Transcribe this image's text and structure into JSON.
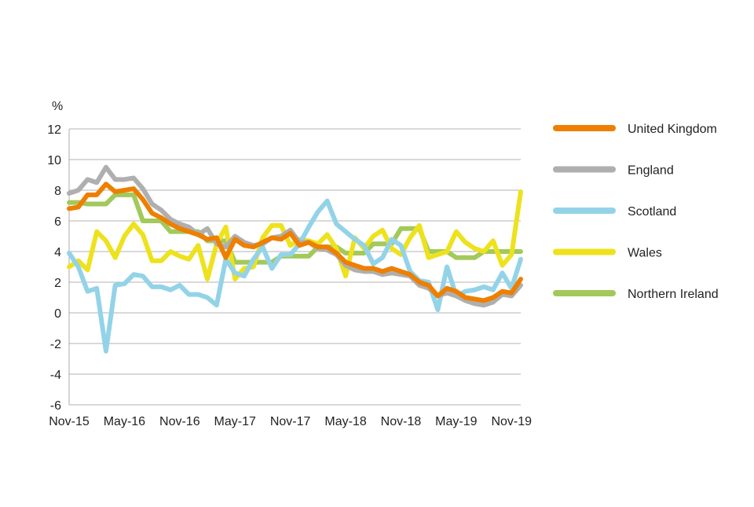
{
  "chart_data": {
    "type": "line",
    "ylabel": "%",
    "ylim": [
      -6,
      12
    ],
    "yticks": [
      "12",
      "10",
      "8",
      "6",
      "4",
      "2",
      "0",
      "-2",
      "-4",
      "-6"
    ],
    "ytick_values": [
      12,
      10,
      8,
      6,
      4,
      2,
      0,
      -2,
      -4,
      -6
    ],
    "xticks": [
      "Nov-15",
      "May-16",
      "Nov-16",
      "May-17",
      "Nov-17",
      "May-18",
      "Nov-18",
      "May-19",
      "Nov-19"
    ],
    "xtick_index": [
      0,
      6,
      12,
      18,
      24,
      30,
      36,
      42,
      48
    ],
    "grid": "horizontal",
    "legend_position": "right",
    "series": [
      {
        "name": "United Kingdom",
        "color": "#EE7F00",
        "values": [
          6.8,
          6.9,
          7.7,
          7.7,
          8.4,
          7.9,
          8.0,
          8.1,
          7.4,
          6.5,
          6.2,
          5.8,
          5.5,
          5.3,
          5.1,
          4.8,
          4.9,
          3.6,
          4.8,
          4.4,
          4.3,
          4.6,
          4.9,
          4.8,
          5.2,
          4.4,
          4.6,
          4.3,
          4.3,
          3.9,
          3.3,
          3.1,
          2.9,
          2.9,
          2.7,
          2.9,
          2.7,
          2.5,
          2.0,
          1.8,
          1.1,
          1.6,
          1.4,
          1.0,
          0.9,
          0.8,
          1.0,
          1.4,
          1.3,
          2.2
        ]
      },
      {
        "name": "England",
        "color": "#AFAFAF",
        "values": [
          7.8,
          8.0,
          8.7,
          8.5,
          9.5,
          8.7,
          8.7,
          8.8,
          8.1,
          7.1,
          6.7,
          6.1,
          5.8,
          5.6,
          5.1,
          5.5,
          4.5,
          4.3,
          5.0,
          4.6,
          4.4,
          4.5,
          4.9,
          5.0,
          5.4,
          4.6,
          4.6,
          4.2,
          4.1,
          3.8,
          3.1,
          2.8,
          2.7,
          2.7,
          2.5,
          2.6,
          2.5,
          2.4,
          1.8,
          1.6,
          1.1,
          1.3,
          1.1,
          0.8,
          0.6,
          0.5,
          0.7,
          1.2,
          1.1,
          1.8
        ]
      },
      {
        "name": "Scotland",
        "color": "#93D3E8",
        "values": [
          3.9,
          3.0,
          1.4,
          1.6,
          -2.5,
          1.8,
          1.9,
          2.5,
          2.4,
          1.7,
          1.7,
          1.5,
          1.8,
          1.2,
          1.2,
          1.0,
          0.5,
          3.5,
          2.6,
          2.4,
          3.5,
          4.3,
          2.9,
          3.8,
          3.8,
          4.5,
          5.6,
          6.6,
          7.3,
          5.8,
          5.3,
          4.8,
          4.4,
          3.2,
          3.6,
          4.8,
          4.4,
          2.7,
          2.1,
          2.0,
          0.2,
          3.0,
          1.1,
          1.4,
          1.5,
          1.7,
          1.5,
          2.6,
          1.6,
          3.5
        ]
      },
      {
        "name": "Wales",
        "color": "#EDE21D",
        "values": [
          3.0,
          3.4,
          2.8,
          5.3,
          4.7,
          3.6,
          5.0,
          5.8,
          5.1,
          3.4,
          3.4,
          4.0,
          3.7,
          3.5,
          4.4,
          2.2,
          4.5,
          5.6,
          2.2,
          2.9,
          3.0,
          4.9,
          5.7,
          5.7,
          4.4,
          4.8,
          4.7,
          4.5,
          5.1,
          4.2,
          2.4,
          4.9,
          4.2,
          5.0,
          5.4,
          4.2,
          3.8,
          4.9,
          5.7,
          3.6,
          3.8,
          4.0,
          5.3,
          4.6,
          4.2,
          4.0,
          4.7,
          3.1,
          3.8,
          7.9
        ]
      },
      {
        "name": "Northern Ireland",
        "color": "#A2C95A",
        "values": [
          7.2,
          7.2,
          7.1,
          7.1,
          7.1,
          7.7,
          7.7,
          7.7,
          6.0,
          6.0,
          6.0,
          5.3,
          5.3,
          5.3,
          5.3,
          4.7,
          4.7,
          4.7,
          3.3,
          3.3,
          3.3,
          3.3,
          3.3,
          3.7,
          3.7,
          3.7,
          3.7,
          4.3,
          4.3,
          4.3,
          3.9,
          3.9,
          3.9,
          4.5,
          4.5,
          4.5,
          5.5,
          5.5,
          5.5,
          4.0,
          4.0,
          4.0,
          3.6,
          3.6,
          3.6,
          4.0,
          4.0,
          4.0,
          4.0,
          4.0
        ]
      }
    ]
  }
}
